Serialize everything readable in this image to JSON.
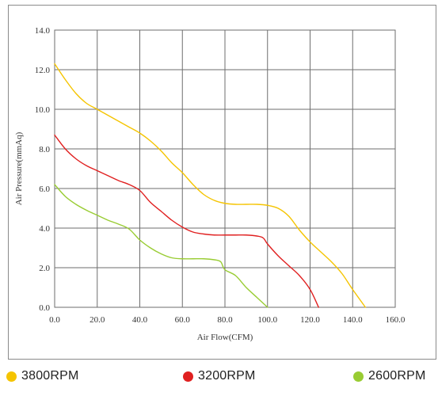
{
  "chart_data": {
    "type": "line",
    "title": "",
    "xlabel": "Air Flow(CFM)",
    "ylabel": "Air Pressure(mmAq)",
    "xlim": [
      0,
      160
    ],
    "ylim": [
      0,
      14
    ],
    "grid": true,
    "legend_position": "bottom",
    "x_ticks": [
      "0.0",
      "20.0",
      "40.0",
      "60.0",
      "80.0",
      "100.0",
      "120.0",
      "140.0",
      "160.0"
    ],
    "y_ticks": [
      "0.0",
      "2.0",
      "4.0",
      "6.0",
      "8.0",
      "10.0",
      "12.0",
      "14.0"
    ],
    "series": [
      {
        "name": "3800RPM",
        "color": "#f5c400",
        "points": [
          [
            0,
            12.3
          ],
          [
            5,
            11.5
          ],
          [
            10,
            10.8
          ],
          [
            15,
            10.3
          ],
          [
            20,
            10.0
          ],
          [
            25,
            9.7
          ],
          [
            30,
            9.4
          ],
          [
            35,
            9.1
          ],
          [
            40,
            8.8
          ],
          [
            45,
            8.4
          ],
          [
            50,
            7.9
          ],
          [
            55,
            7.3
          ],
          [
            60,
            6.8
          ],
          [
            65,
            6.2
          ],
          [
            70,
            5.7
          ],
          [
            75,
            5.4
          ],
          [
            80,
            5.25
          ],
          [
            85,
            5.2
          ],
          [
            90,
            5.2
          ],
          [
            95,
            5.2
          ],
          [
            100,
            5.15
          ],
          [
            105,
            5.0
          ],
          [
            110,
            4.6
          ],
          [
            115,
            3.9
          ],
          [
            120,
            3.3
          ],
          [
            125,
            2.8
          ],
          [
            130,
            2.3
          ],
          [
            135,
            1.7
          ],
          [
            140,
            0.9
          ],
          [
            146,
            0.0
          ]
        ]
      },
      {
        "name": "3200RPM",
        "color": "#e02020",
        "points": [
          [
            0,
            8.7
          ],
          [
            5,
            8.0
          ],
          [
            10,
            7.5
          ],
          [
            15,
            7.15
          ],
          [
            20,
            6.9
          ],
          [
            25,
            6.65
          ],
          [
            30,
            6.4
          ],
          [
            35,
            6.2
          ],
          [
            40,
            5.9
          ],
          [
            45,
            5.3
          ],
          [
            50,
            4.85
          ],
          [
            55,
            4.4
          ],
          [
            60,
            4.05
          ],
          [
            65,
            3.8
          ],
          [
            70,
            3.7
          ],
          [
            75,
            3.65
          ],
          [
            80,
            3.65
          ],
          [
            85,
            3.65
          ],
          [
            90,
            3.65
          ],
          [
            95,
            3.6
          ],
          [
            98,
            3.5
          ],
          [
            100,
            3.2
          ],
          [
            105,
            2.6
          ],
          [
            110,
            2.1
          ],
          [
            115,
            1.6
          ],
          [
            120,
            0.9
          ],
          [
            124,
            0.0
          ]
        ]
      },
      {
        "name": "2600RPM",
        "color": "#99cc33",
        "points": [
          [
            0,
            6.2
          ],
          [
            5,
            5.6
          ],
          [
            10,
            5.2
          ],
          [
            15,
            4.9
          ],
          [
            20,
            4.65
          ],
          [
            25,
            4.4
          ],
          [
            30,
            4.2
          ],
          [
            35,
            3.95
          ],
          [
            40,
            3.4
          ],
          [
            45,
            3.0
          ],
          [
            50,
            2.7
          ],
          [
            55,
            2.5
          ],
          [
            60,
            2.45
          ],
          [
            65,
            2.45
          ],
          [
            70,
            2.45
          ],
          [
            75,
            2.4
          ],
          [
            78,
            2.3
          ],
          [
            80,
            1.9
          ],
          [
            85,
            1.6
          ],
          [
            90,
            1.0
          ],
          [
            95,
            0.5
          ],
          [
            100,
            0.0
          ]
        ]
      }
    ]
  }
}
